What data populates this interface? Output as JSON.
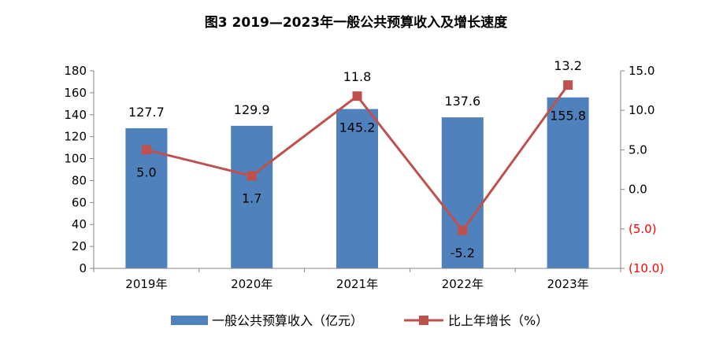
{
  "chart_data": {
    "type": "bar",
    "title": "图3   2019—2023年一般公共预算收入及增长速度",
    "categories": [
      "2019年",
      "2020年",
      "2021年",
      "2022年",
      "2023年"
    ],
    "series": [
      {
        "name": "一般公共预算收入（亿元）",
        "type": "bar",
        "axis": "left",
        "color": "#4f81bd",
        "values": [
          127.7,
          129.9,
          145.2,
          137.6,
          155.8
        ],
        "labels": [
          "127.7",
          "129.9",
          "145.2",
          "137.6",
          "155.8"
        ]
      },
      {
        "name": "比上年增长（%）",
        "type": "line",
        "axis": "right",
        "color": "#c0504d",
        "values": [
          5.0,
          1.7,
          11.8,
          -5.2,
          13.2
        ],
        "labels": [
          "5.0",
          "1.7",
          "11.8",
          "-5.2",
          "13.2"
        ]
      }
    ],
    "y_left": {
      "min": 0,
      "max": 180,
      "step": 20,
      "ticks": [
        "0",
        "20",
        "40",
        "60",
        "80",
        "100",
        "120",
        "140",
        "160",
        "180"
      ]
    },
    "y_right": {
      "min": -10,
      "max": 15,
      "step": 5,
      "ticks": [
        "(10.0)",
        "(5.0)",
        "0.0",
        "5.0",
        "10.0",
        "15.0"
      ],
      "negative_color": "#ff0000"
    },
    "grid": false,
    "legend_position": "bottom"
  }
}
